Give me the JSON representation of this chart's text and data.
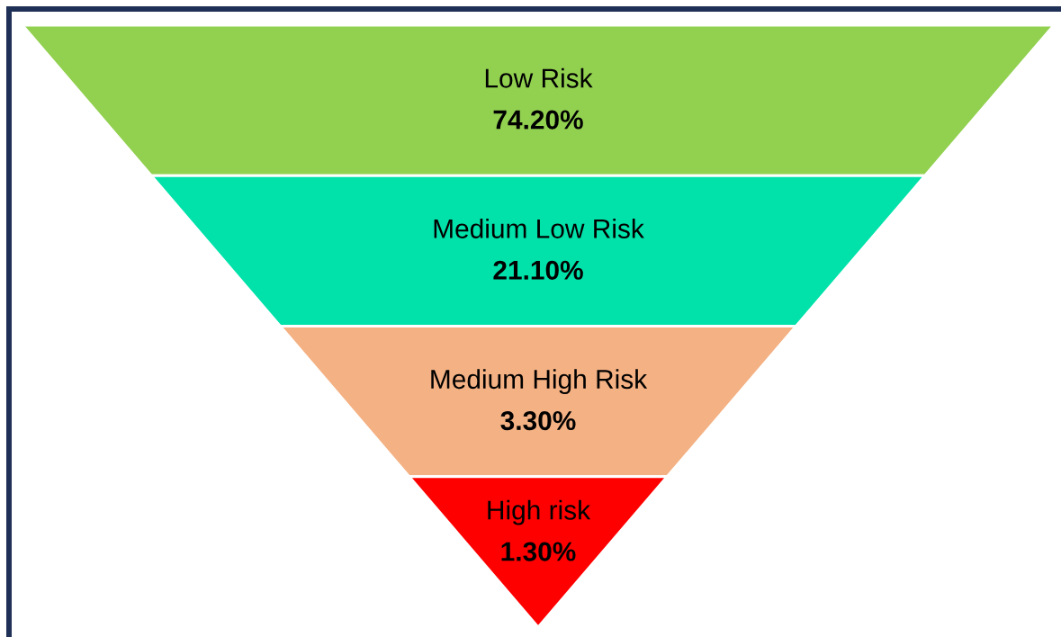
{
  "chart_data": {
    "type": "other",
    "categories": [
      "Low Risk",
      "Medium Low Risk",
      "Medium High Risk",
      "High risk"
    ],
    "values": [
      74.2,
      21.1,
      3.3,
      1.3
    ],
    "value_labels": [
      "74.20%",
      "21.10%",
      "3.30%",
      "1.30%"
    ],
    "colors": [
      "#92d050",
      "#00e2aa",
      "#f4b183",
      "#ff0000"
    ]
  }
}
